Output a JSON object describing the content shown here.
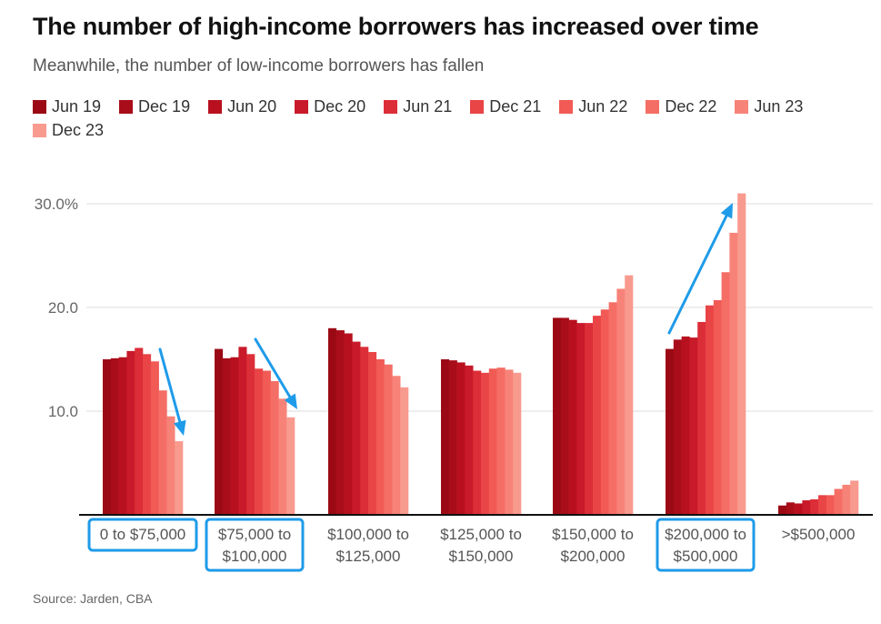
{
  "title": "The number of high-income borrowers has increased over time",
  "subtitle": "Meanwhile, the number of low-income borrowers has fallen",
  "source": "Source: Jarden, CBA",
  "chart_data": {
    "type": "bar",
    "categories": [
      [
        "0 to $75,000"
      ],
      [
        "$75,000 to",
        "$100,000"
      ],
      [
        "$100,000 to",
        "$125,000"
      ],
      [
        "$125,000 to",
        "$150,000"
      ],
      [
        "$150,000 to",
        "$200,000"
      ],
      [
        "$200,000 to",
        "$500,000"
      ],
      [
        ">$500,000"
      ]
    ],
    "series": [
      {
        "name": "Jun 19",
        "color": "#9b0a14",
        "values": [
          15.0,
          16.0,
          18.0,
          15.0,
          19.0,
          16.0,
          0.9
        ]
      },
      {
        "name": "Dec 19",
        "color": "#a80d19",
        "values": [
          15.1,
          15.1,
          17.8,
          14.9,
          19.0,
          16.9,
          1.2
        ]
      },
      {
        "name": "Jun 20",
        "color": "#b8101f",
        "values": [
          15.2,
          15.2,
          17.5,
          14.7,
          18.8,
          17.2,
          1.1
        ]
      },
      {
        "name": "Dec 20",
        "color": "#c81a2a",
        "values": [
          15.8,
          16.2,
          16.7,
          14.4,
          18.5,
          17.1,
          1.4
        ]
      },
      {
        "name": "Jun 21",
        "color": "#dc2e38",
        "values": [
          16.1,
          15.5,
          16.2,
          13.9,
          18.5,
          18.6,
          1.5
        ]
      },
      {
        "name": "Dec 21",
        "color": "#e94446",
        "values": [
          15.5,
          14.1,
          15.7,
          13.7,
          19.2,
          20.2,
          1.9
        ]
      },
      {
        "name": "Jun 22",
        "color": "#f15a55",
        "values": [
          14.8,
          13.9,
          15.0,
          14.1,
          19.8,
          20.7,
          1.9
        ]
      },
      {
        "name": "Dec 22",
        "color": "#f56e66",
        "values": [
          12.0,
          12.9,
          14.5,
          14.2,
          20.5,
          23.4,
          2.5
        ]
      },
      {
        "name": "Jun 23",
        "color": "#f78378",
        "values": [
          9.5,
          11.2,
          13.4,
          14.0,
          21.8,
          27.2,
          2.9
        ]
      },
      {
        "name": "Dec 23",
        "color": "#f99a8f",
        "values": [
          7.1,
          9.4,
          12.3,
          13.7,
          23.1,
          31.0,
          3.3
        ]
      }
    ],
    "y_ticks": [
      "10.0",
      "20.0",
      "30.0%"
    ],
    "y_tick_values": [
      10,
      20,
      30
    ],
    "ylim": [
      0,
      33
    ],
    "grid": true,
    "legend_position": "top",
    "highlighted_categories": [
      0,
      1,
      5
    ],
    "highlight_color": "#1e9be9",
    "annotations": [
      {
        "type": "arrow",
        "direction": "down",
        "category": 0
      },
      {
        "type": "arrow",
        "direction": "down",
        "category": 1
      },
      {
        "type": "arrow",
        "direction": "up",
        "category": 5
      }
    ]
  }
}
